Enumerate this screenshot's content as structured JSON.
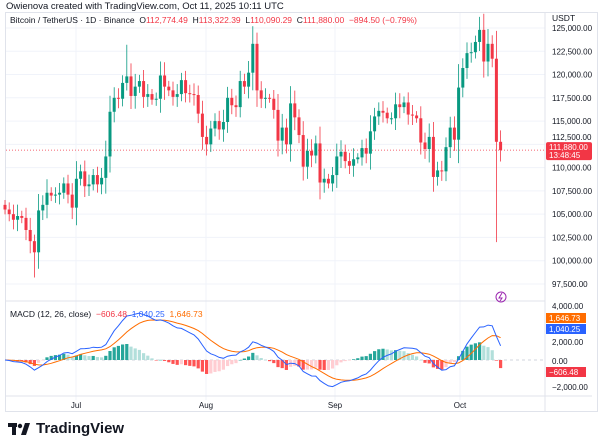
{
  "credit": "Owienova created with TradingView.com, Oct 11, 2025 10:11 UTC",
  "legend": {
    "symbol": "Bitcoin / TetherUS · 1D · Binance",
    "o_label": "O",
    "o": "112,774.49",
    "h_label": "H",
    "h": "113,322.39",
    "l_label": "L",
    "l": "110,090.29",
    "c_label": "C",
    "c": "111,880.00",
    "change": "−894.50 (−0.79%)"
  },
  "unit": "USDT",
  "price_label": {
    "value": "111,880.00",
    "countdown": "13:48:45"
  },
  "macd": {
    "title": "MACD (12, 26, close)",
    "hist": "−606.48",
    "macd": "1,040.25",
    "signal": "1,646.73"
  },
  "colors": {
    "up": "#089981",
    "down": "#f23645",
    "macd": "#2962ff",
    "signal": "#ff6d00",
    "lightning": "#9c27b0"
  },
  "footer": {
    "brand": "TradingView"
  },
  "chart_data": [
    {
      "type": "candlestick",
      "title": "Bitcoin / TetherUS · 1D · Binance",
      "start_date": "2025-06-15",
      "end_date": "2025-10-11",
      "y_ticks": [
        "125,000.00",
        "122,500.00",
        "120,000.00",
        "117,500.00",
        "115,000.00",
        "112,500.00",
        "110,000.00",
        "107,500.00",
        "105,000.00",
        "102,500.00",
        "100,000.00",
        "97,500.00"
      ],
      "ylim": [
        97500,
        125000
      ],
      "x_ticks": [
        "Jul",
        "Aug",
        "Sep",
        "Oct"
      ],
      "closes_thousands": [
        105.5,
        105.0,
        104.4,
        104.8,
        104.6,
        103.3,
        102.1,
        100.9,
        105.4,
        106.0,
        107.3,
        107.0,
        107.1,
        107.3,
        108.3,
        107.1,
        105.7,
        108.8,
        109.6,
        108.0,
        108.2,
        109.2,
        108.2,
        108.9,
        111.2,
        116.0,
        117.5,
        117.4,
        119.1,
        119.8,
        117.7,
        118.7,
        119.3,
        117.6,
        117.9,
        117.3,
        117.4,
        119.9,
        118.7,
        118.3,
        117.6,
        117.9,
        119.4,
        118.0,
        117.9,
        117.8,
        115.8,
        113.3,
        112.5,
        114.2,
        115.0,
        114.1,
        114.9,
        117.5,
        116.7,
        116.5,
        119.3,
        118.7,
        120.2,
        123.3,
        118.3,
        117.4,
        117.5,
        117.4,
        116.2,
        112.9,
        114.3,
        112.5,
        116.9,
        115.4,
        113.5,
        110.1,
        111.8,
        111.3,
        112.6,
        108.4,
        108.8,
        108.3,
        109.2,
        111.2,
        111.7,
        110.7,
        110.2,
        110.9,
        111.1,
        112.1,
        111.5,
        113.9,
        115.5,
        116.1,
        115.9,
        115.3,
        115.3,
        116.8,
        116.5,
        117.0,
        115.7,
        115.6,
        115.3,
        112.7,
        112.0,
        113.3,
        109.0,
        109.7,
        109.6,
        112.2,
        114.3,
        113.0,
        118.6,
        120.7,
        122.3,
        122.4,
        123.5,
        124.8,
        121.4,
        123.3,
        121.7,
        112.774,
        111.88
      ],
      "notable_wicks": {
        "2025-06-22": {
          "low": 98.2
        },
        "2025-07-14": {
          "high": 123.2
        },
        "2025-08-14": {
          "high": 124.5
        },
        "2025-10-06": {
          "high": 126.2
        },
        "2025-10-10": {
          "low": 102.0
        }
      },
      "last_price": 111880
    },
    {
      "type": "macd",
      "params": "12, 26, close",
      "y_ticks": [
        "4,000.00",
        "2,000.00",
        "0.00",
        "−2,000.00"
      ],
      "ylim": [
        -2000,
        4000
      ],
      "last": {
        "histogram": -606.48,
        "macd": 1040.25,
        "signal": 1646.73
      }
    }
  ]
}
